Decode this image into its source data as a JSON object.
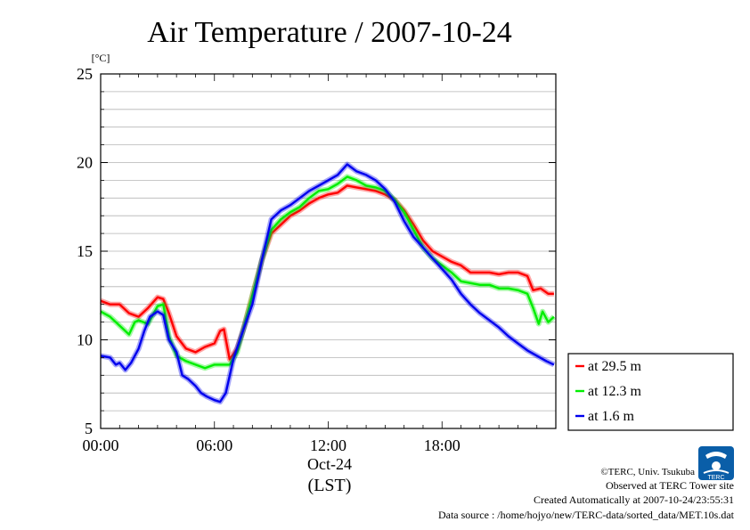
{
  "chart_data": {
    "type": "line",
    "title": "Air Temperature / 2007-10-24",
    "y_unit_label": "[°C]",
    "ylim": [
      5,
      25
    ],
    "y_ticks": [
      5,
      10,
      15,
      20,
      25
    ],
    "xlim": [
      0,
      24
    ],
    "x_ticks": [
      {
        "x": 0,
        "label": "00:00"
      },
      {
        "x": 6,
        "label": "06:00"
      },
      {
        "x": 12,
        "label": "12:00"
      },
      {
        "x": 18,
        "label": "18:00"
      }
    ],
    "x_sublabel_date": "Oct-24",
    "x_sublabel_zone": "(LST)",
    "grid": "horizontal",
    "legend_position": "right-bottom",
    "series": [
      {
        "name": "at 29.5 m",
        "color": "#ff0000",
        "points": [
          [
            0,
            12.2
          ],
          [
            0.5,
            12.0
          ],
          [
            1,
            12.0
          ],
          [
            1.5,
            11.5
          ],
          [
            2,
            11.3
          ],
          [
            2.5,
            11.8
          ],
          [
            3,
            12.4
          ],
          [
            3.3,
            12.3
          ],
          [
            3.6,
            11.5
          ],
          [
            4,
            10.2
          ],
          [
            4.5,
            9.5
          ],
          [
            5,
            9.3
          ],
          [
            5.5,
            9.6
          ],
          [
            6,
            9.8
          ],
          [
            6.3,
            10.5
          ],
          [
            6.5,
            10.6
          ],
          [
            6.8,
            8.9
          ],
          [
            7.2,
            9.5
          ],
          [
            7.5,
            10.5
          ],
          [
            8,
            12.5
          ],
          [
            8.5,
            14.5
          ],
          [
            9,
            16.0
          ],
          [
            9.5,
            16.5
          ],
          [
            10,
            17.0
          ],
          [
            10.5,
            17.3
          ],
          [
            11,
            17.7
          ],
          [
            11.5,
            18.0
          ],
          [
            12,
            18.2
          ],
          [
            12.5,
            18.3
          ],
          [
            13,
            18.7
          ],
          [
            13.5,
            18.6
          ],
          [
            14,
            18.5
          ],
          [
            14.5,
            18.4
          ],
          [
            15,
            18.2
          ],
          [
            15.5,
            17.9
          ],
          [
            16,
            17.3
          ],
          [
            16.5,
            16.5
          ],
          [
            17,
            15.6
          ],
          [
            17.5,
            15.0
          ],
          [
            18,
            14.7
          ],
          [
            18.5,
            14.4
          ],
          [
            19,
            14.2
          ],
          [
            19.5,
            13.8
          ],
          [
            20,
            13.8
          ],
          [
            20.5,
            13.8
          ],
          [
            21,
            13.7
          ],
          [
            21.5,
            13.8
          ],
          [
            22,
            13.8
          ],
          [
            22.5,
            13.6
          ],
          [
            22.8,
            12.8
          ],
          [
            23.2,
            12.9
          ],
          [
            23.6,
            12.6
          ],
          [
            23.9,
            12.6
          ]
        ]
      },
      {
        "name": "at 12.3 m",
        "color": "#00ee00",
        "points": [
          [
            0,
            11.6
          ],
          [
            0.5,
            11.3
          ],
          [
            1,
            10.8
          ],
          [
            1.5,
            10.3
          ],
          [
            1.8,
            11.0
          ],
          [
            2,
            11.1
          ],
          [
            2.5,
            10.9
          ],
          [
            3,
            11.9
          ],
          [
            3.3,
            12.0
          ],
          [
            3.6,
            10.2
          ],
          [
            4,
            9.1
          ],
          [
            4.5,
            8.8
          ],
          [
            5,
            8.6
          ],
          [
            5.5,
            8.4
          ],
          [
            6,
            8.6
          ],
          [
            6.5,
            8.6
          ],
          [
            6.8,
            8.6
          ],
          [
            7.2,
            9.3
          ],
          [
            7.5,
            10.5
          ],
          [
            8,
            12.5
          ],
          [
            8.5,
            14.5
          ],
          [
            9,
            16.2
          ],
          [
            9.5,
            16.8
          ],
          [
            10,
            17.2
          ],
          [
            10.5,
            17.5
          ],
          [
            11,
            18.0
          ],
          [
            11.5,
            18.4
          ],
          [
            12,
            18.5
          ],
          [
            12.5,
            18.8
          ],
          [
            13,
            19.2
          ],
          [
            13.5,
            19.0
          ],
          [
            14,
            18.7
          ],
          [
            14.5,
            18.6
          ],
          [
            15,
            18.4
          ],
          [
            15.5,
            17.9
          ],
          [
            16,
            17.2
          ],
          [
            16.5,
            16.2
          ],
          [
            17,
            15.2
          ],
          [
            17.5,
            14.6
          ],
          [
            18,
            14.2
          ],
          [
            18.5,
            13.8
          ],
          [
            19,
            13.3
          ],
          [
            19.5,
            13.2
          ],
          [
            20,
            13.1
          ],
          [
            20.5,
            13.1
          ],
          [
            21,
            12.9
          ],
          [
            21.5,
            12.9
          ],
          [
            22,
            12.8
          ],
          [
            22.5,
            12.6
          ],
          [
            22.8,
            11.8
          ],
          [
            23.1,
            10.9
          ],
          [
            23.3,
            11.6
          ],
          [
            23.6,
            11.0
          ],
          [
            23.9,
            11.3
          ]
        ]
      },
      {
        "name": "at 1.6 m",
        "color": "#0000ee",
        "points": [
          [
            0,
            9.1
          ],
          [
            0.5,
            9.0
          ],
          [
            0.8,
            8.6
          ],
          [
            1,
            8.7
          ],
          [
            1.3,
            8.3
          ],
          [
            1.6,
            8.7
          ],
          [
            2,
            9.5
          ],
          [
            2.3,
            10.5
          ],
          [
            2.6,
            11.3
          ],
          [
            3,
            11.6
          ],
          [
            3.3,
            11.4
          ],
          [
            3.6,
            10.0
          ],
          [
            4,
            9.3
          ],
          [
            4.3,
            8.0
          ],
          [
            4.6,
            7.8
          ],
          [
            5,
            7.4
          ],
          [
            5.3,
            7.0
          ],
          [
            5.6,
            6.8
          ],
          [
            6,
            6.6
          ],
          [
            6.3,
            6.5
          ],
          [
            6.6,
            7.0
          ],
          [
            7,
            8.9
          ],
          [
            7.5,
            10.5
          ],
          [
            8,
            12.0
          ],
          [
            8.5,
            14.5
          ],
          [
            9,
            16.8
          ],
          [
            9.5,
            17.3
          ],
          [
            10,
            17.6
          ],
          [
            10.5,
            18.0
          ],
          [
            11,
            18.4
          ],
          [
            11.5,
            18.7
          ],
          [
            12,
            19.0
          ],
          [
            12.5,
            19.3
          ],
          [
            13,
            19.9
          ],
          [
            13.5,
            19.5
          ],
          [
            14,
            19.3
          ],
          [
            14.5,
            19.0
          ],
          [
            15,
            18.5
          ],
          [
            15.5,
            17.8
          ],
          [
            16,
            16.7
          ],
          [
            16.5,
            15.8
          ],
          [
            17,
            15.2
          ],
          [
            17.5,
            14.6
          ],
          [
            18,
            14.0
          ],
          [
            18.5,
            13.4
          ],
          [
            19,
            12.6
          ],
          [
            19.5,
            12.0
          ],
          [
            20,
            11.5
          ],
          [
            20.5,
            11.1
          ],
          [
            21,
            10.7
          ],
          [
            21.5,
            10.2
          ],
          [
            22,
            9.8
          ],
          [
            22.5,
            9.4
          ],
          [
            23,
            9.1
          ],
          [
            23.5,
            8.8
          ],
          [
            23.9,
            8.6
          ]
        ]
      }
    ]
  },
  "credits": {
    "copyright": "©TERC, Univ. Tsukuba",
    "site": "Observed at TERC Tower site",
    "created": "Created Automatically at 2007-10-24/23:55:31",
    "source": "Data source : /home/hojyo/new/TERC-data/sorted_data/MET.10s.dat",
    "logo_text": "TERC"
  }
}
